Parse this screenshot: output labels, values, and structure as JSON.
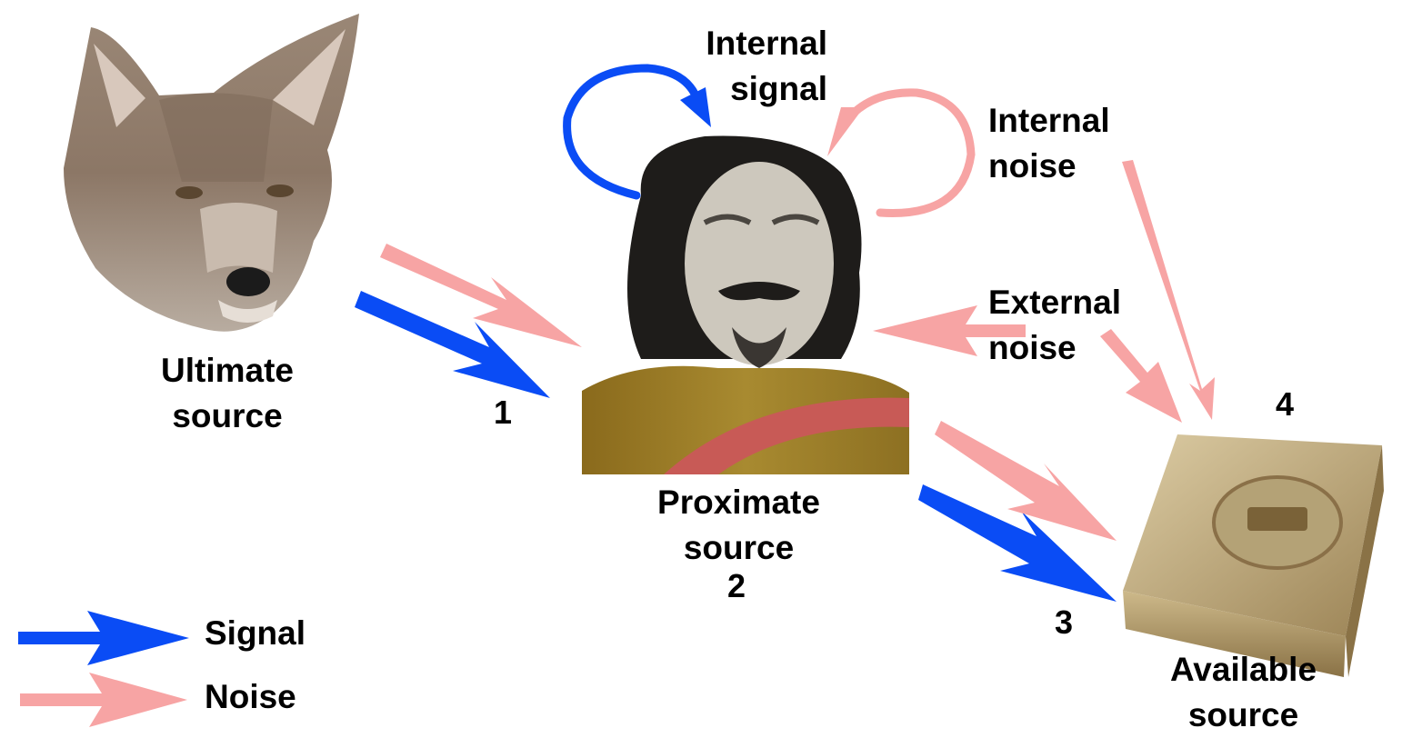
{
  "diagram": {
    "nodes": {
      "ultimate": {
        "label_line1": "Ultimate",
        "label_line2": "source",
        "icon": "coyote-head"
      },
      "proximate": {
        "label_line1": "Proximate",
        "label_line2": "source",
        "number": "2",
        "icon": "bearded-man-bust"
      },
      "available": {
        "label_line1": "Available",
        "label_line2": "source",
        "icon": "bible-book"
      }
    },
    "callouts": {
      "internal_signal": {
        "line1": "Internal",
        "line2": "signal"
      },
      "internal_noise": {
        "line1": "Internal",
        "line2": "noise"
      },
      "external_noise": {
        "line1": "External",
        "line2": "noise"
      }
    },
    "numbers": {
      "n1": "1",
      "n3": "3",
      "n4": "4"
    },
    "legend": {
      "signal": {
        "label": "Signal",
        "color": "#0a4cf5"
      },
      "noise": {
        "label": "Noise",
        "color": "#f7a4a4"
      }
    }
  }
}
